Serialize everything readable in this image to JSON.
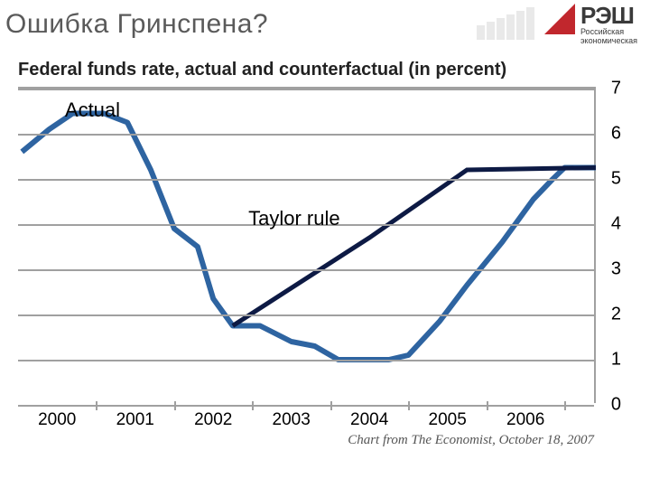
{
  "title": "Ошибка Гринспена?",
  "chart": {
    "title": "Federal funds rate, actual and counterfactual (in percent)",
    "type": "line",
    "background_color": "#ffffff",
    "grid_color": "#a0a0a0",
    "x_years": [
      "2000",
      "2001",
      "2002",
      "2003",
      "2004",
      "2005",
      "2006"
    ],
    "x_range": [
      1999.5,
      2006.9
    ],
    "y_range": [
      0,
      7
    ],
    "y_ticks": [
      0,
      1,
      2,
      3,
      4,
      5,
      6,
      7
    ],
    "series": {
      "actual": {
        "label": "Actual",
        "label_pos": {
          "x": 2000.1,
          "y": 6.5
        },
        "color": "#2e64a1",
        "width": 6,
        "points": [
          [
            1999.55,
            5.6
          ],
          [
            1999.9,
            6.1
          ],
          [
            2000.2,
            6.45
          ],
          [
            2000.6,
            6.45
          ],
          [
            2000.9,
            6.25
          ],
          [
            2001.2,
            5.2
          ],
          [
            2001.5,
            3.9
          ],
          [
            2001.8,
            3.5
          ],
          [
            2002.0,
            2.35
          ],
          [
            2002.25,
            1.75
          ],
          [
            2002.6,
            1.75
          ],
          [
            2003.0,
            1.4
          ],
          [
            2003.3,
            1.3
          ],
          [
            2003.6,
            1.0
          ],
          [
            2004.0,
            1.0
          ],
          [
            2004.25,
            1.0
          ],
          [
            2004.5,
            1.1
          ],
          [
            2004.9,
            1.85
          ],
          [
            2005.25,
            2.65
          ],
          [
            2005.7,
            3.6
          ],
          [
            2006.1,
            4.55
          ],
          [
            2006.35,
            5.0
          ],
          [
            2006.5,
            5.25
          ],
          [
            2006.9,
            5.25
          ]
        ]
      },
      "taylor": {
        "label": "Taylor rule",
        "label_pos": {
          "x": 2002.45,
          "y": 4.1
        },
        "color": "#0d1a44",
        "width": 5,
        "points": [
          [
            2002.25,
            1.75
          ],
          [
            2004.0,
            3.7
          ],
          [
            2005.25,
            5.2
          ],
          [
            2006.9,
            5.25
          ]
        ]
      }
    },
    "source": "Chart from The Economist, October 18, 2007",
    "title_fontsize": 20,
    "axis_fontsize": 20,
    "label_fontsize": 22
  },
  "logo": {
    "abbrev": "РЭШ",
    "line1": "Российская",
    "line2": "экономическая",
    "triangle_color": "#c1272d",
    "bar_color": "#cfcfcf"
  }
}
